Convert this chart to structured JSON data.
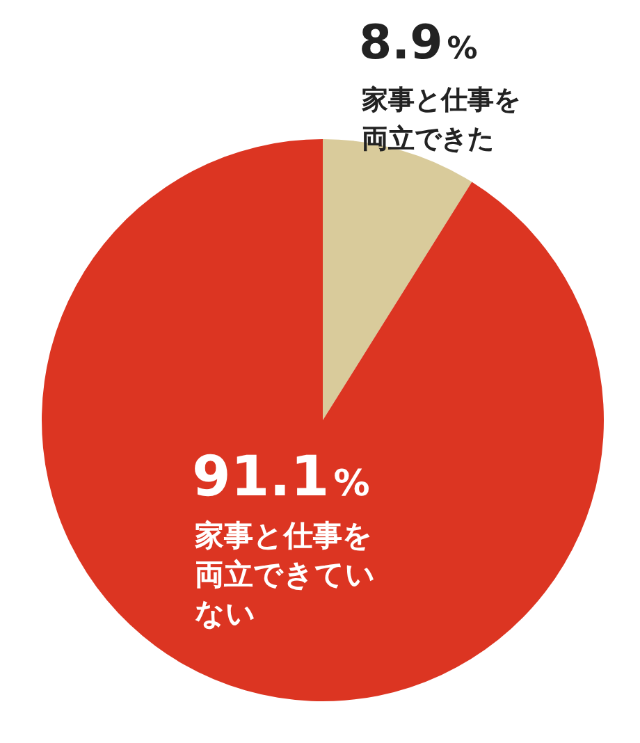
{
  "chart_data": {
    "type": "pie",
    "categories": [
      "家事と仕事を両立できた",
      "家事と仕事を両立できていない"
    ],
    "values": [
      8.9,
      91.1
    ],
    "value_labels": [
      "8.9%",
      "91.1%"
    ],
    "colors": [
      "#d9cb9b",
      "#dc3522"
    ]
  }
}
